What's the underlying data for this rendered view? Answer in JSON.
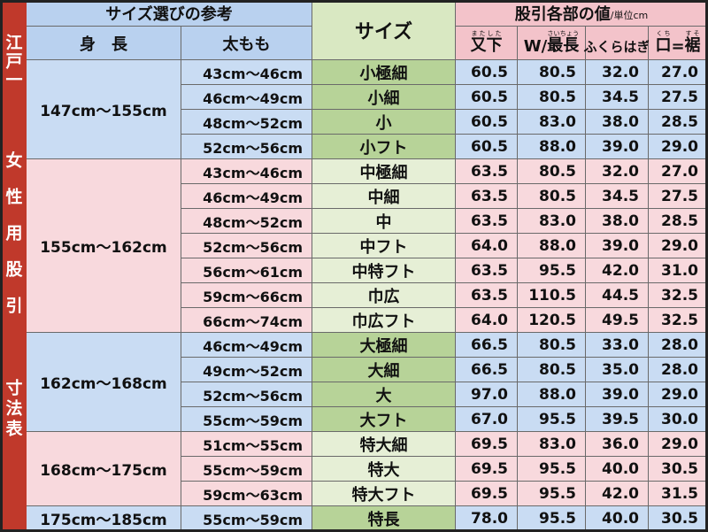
{
  "side_title": [
    "江戸一",
    "女性用股引",
    "寸法表"
  ],
  "header": {
    "left_title": "サイズ選びの参考",
    "size_title": "サイズ",
    "right_title": "股引各部の値",
    "unit": "/単位cm",
    "height_label": "身　長",
    "thigh_label": "太もも",
    "columns": [
      [
        {
          "text": "又下",
          "ruby": "またした"
        }
      ],
      [
        {
          "text": "W/"
        },
        {
          "text": "最長",
          "ruby": "さいちょう"
        }
      ],
      [
        {
          "text": "ふくらはぎ"
        }
      ],
      [
        {
          "text": "口",
          "ruby": "くち"
        },
        {
          "text": "="
        },
        {
          "text": "裾",
          "ruby": "すそ"
        }
      ]
    ]
  },
  "groups": [
    {
      "height": "147cm～155cm",
      "rows": [
        {
          "thigh": "43cm～46cm",
          "size": "小極細",
          "values": [
            "60.5",
            "80.5",
            "32.0",
            "27.0"
          ]
        },
        {
          "thigh": "46cm～49cm",
          "size": "小細",
          "values": [
            "60.5",
            "80.5",
            "34.5",
            "27.5"
          ]
        },
        {
          "thigh": "48cm～52cm",
          "size": "小",
          "values": [
            "60.5",
            "83.0",
            "38.0",
            "28.5"
          ]
        },
        {
          "thigh": "52cm～56cm",
          "size": "小フト",
          "values": [
            "60.5",
            "88.0",
            "39.0",
            "29.0"
          ]
        }
      ]
    },
    {
      "height": "155cm～162cm",
      "rows": [
        {
          "thigh": "43cm～46cm",
          "size": "中極細",
          "values": [
            "63.5",
            "80.5",
            "32.0",
            "27.0"
          ]
        },
        {
          "thigh": "46cm～49cm",
          "size": "中細",
          "values": [
            "63.5",
            "80.5",
            "34.5",
            "27.5"
          ]
        },
        {
          "thigh": "48cm～52cm",
          "size": "中",
          "values": [
            "63.5",
            "83.0",
            "38.0",
            "28.5"
          ]
        },
        {
          "thigh": "52cm～56cm",
          "size": "中フト",
          "values": [
            "64.0",
            "88.0",
            "39.0",
            "29.0"
          ]
        },
        {
          "thigh": "56cm～61cm",
          "size": "中特フト",
          "values": [
            "63.5",
            "95.5",
            "42.0",
            "31.0"
          ]
        },
        {
          "thigh": "59cm～66cm",
          "size": "巾広",
          "values": [
            "63.5",
            "110.5",
            "44.5",
            "32.5"
          ]
        },
        {
          "thigh": "66cm～74cm",
          "size": "巾広フト",
          "values": [
            "64.0",
            "120.5",
            "49.5",
            "32.5"
          ]
        }
      ]
    },
    {
      "height": "162cm～168cm",
      "rows": [
        {
          "thigh": "46cm～49cm",
          "size": "大極細",
          "values": [
            "66.5",
            "80.5",
            "33.0",
            "28.0"
          ]
        },
        {
          "thigh": "49cm～52cm",
          "size": "大細",
          "values": [
            "66.5",
            "80.5",
            "35.0",
            "28.0"
          ]
        },
        {
          "thigh": "52cm～56cm",
          "size": "大",
          "values": [
            "97.0",
            "88.0",
            "39.0",
            "29.0"
          ]
        },
        {
          "thigh": "55cm～59cm",
          "size": "大フト",
          "values": [
            "67.0",
            "95.5",
            "39.5",
            "30.0"
          ]
        }
      ]
    },
    {
      "height": "168cm～175cm",
      "rows": [
        {
          "thigh": "51cm～55cm",
          "size": "特大細",
          "values": [
            "69.5",
            "83.0",
            "36.0",
            "29.0"
          ]
        },
        {
          "thigh": "55cm～59cm",
          "size": "特大",
          "values": [
            "69.5",
            "95.5",
            "40.0",
            "30.5"
          ]
        },
        {
          "thigh": "59cm～63cm",
          "size": "特大フト",
          "values": [
            "69.5",
            "95.5",
            "42.0",
            "31.5"
          ]
        }
      ]
    },
    {
      "height": "175cm～185cm",
      "rows": [
        {
          "thigh": "55cm～59cm",
          "size": "特長",
          "values": [
            "78.0",
            "95.5",
            "40.0",
            "30.5"
          ]
        }
      ]
    }
  ]
}
